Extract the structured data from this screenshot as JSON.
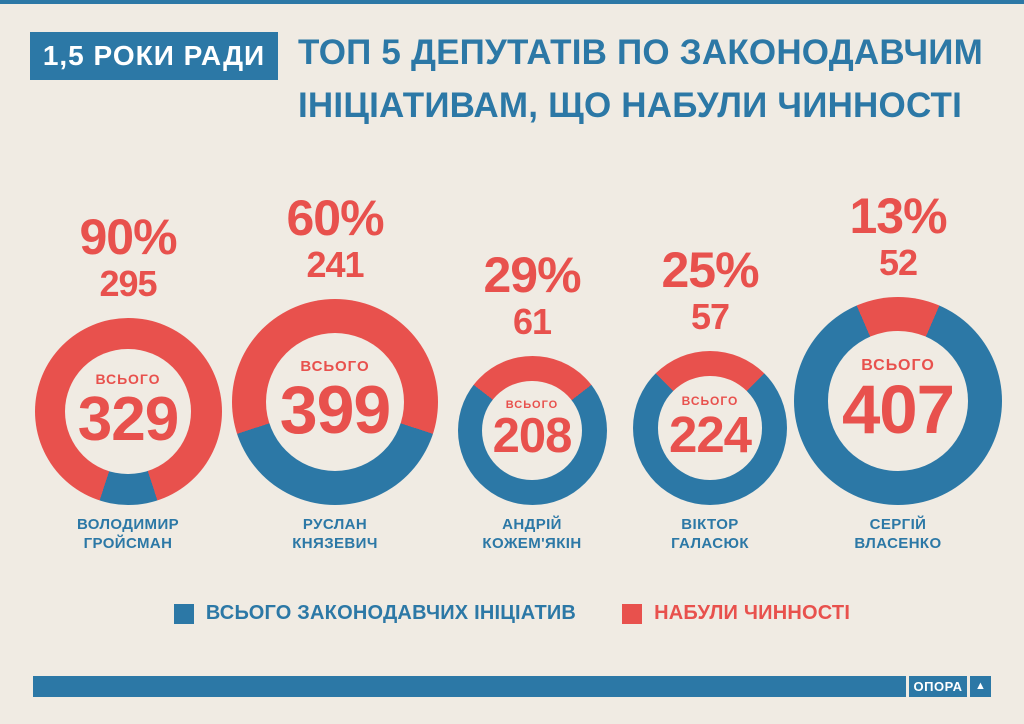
{
  "header": {
    "badge": "1,5 РОКИ РАДИ",
    "title_line1": "ТОП 5 ДЕПУТАТІВ ПО ЗАКОНОДАВЧИМ",
    "title_line2": "ІНІЦІАТИВАМ, ЩО НАБУЛИ ЧИННОСТІ"
  },
  "colors": {
    "red": "#E8514D",
    "blue": "#2C78A6",
    "background": "#F0EBE3"
  },
  "labels": {
    "total_caption": "ВСЬОГО"
  },
  "legend": {
    "items": [
      {
        "label": "ВСЬОГО ЗАКОНОДАВЧИХ ІНІЦІАТИВ",
        "color": "#2C78A6"
      },
      {
        "label": "НАБУЛИ ЧИННОСТІ",
        "color": "#E8514D"
      }
    ]
  },
  "footer": {
    "brand": "ОПОРА",
    "arrow": "▲"
  },
  "chart_data": {
    "type": "pie",
    "variant": "donut_multiples",
    "title": "ТОП 5 ДЕПУТАТІВ ПО ЗАКОНОДАВЧИМ ІНІЦІАТИВАМ, ЩО НАБУЛИ ЧИННОСТІ",
    "legend_position": "bottom",
    "series_colors": {
      "total_initiatives": "#2C78A6",
      "in_force": "#E8514D"
    },
    "size_encoding": "donut diameter proportional to sqrt(total_initiatives)",
    "deputies": [
      {
        "name": "ВОЛОДИМИР ГРОЙСМАН",
        "name_line1": "ВОЛОДИМИР",
        "name_line2": "ГРОЙСМАН",
        "percent": 90,
        "percent_label": "90%",
        "in_force": 295,
        "total_initiatives": 329
      },
      {
        "name": "РУСЛАН КНЯЗЕВИЧ",
        "name_line1": "РУСЛАН",
        "name_line2": "КНЯЗЕВИЧ",
        "percent": 60,
        "percent_label": "60%",
        "in_force": 241,
        "total_initiatives": 399
      },
      {
        "name": "АНДРІЙ КОЖЕМ'ЯКІН",
        "name_line1": "АНДРІЙ",
        "name_line2": "КОЖЕМ'ЯКІН",
        "percent": 29,
        "percent_label": "29%",
        "in_force": 61,
        "total_initiatives": 208
      },
      {
        "name": "ВІКТОР ГАЛАСЮК",
        "name_line1": "ВІКТОР",
        "name_line2": "ГАЛАСЮК",
        "percent": 25,
        "percent_label": "25%",
        "in_force": 57,
        "total_initiatives": 224
      },
      {
        "name": "СЕРГІЙ ВЛАСЕНКО",
        "name_line1": "СЕРГІЙ",
        "name_line2": "ВЛАСЕНКО",
        "percent": 13,
        "percent_label": "13%",
        "in_force": 52,
        "total_initiatives": 407
      }
    ]
  }
}
